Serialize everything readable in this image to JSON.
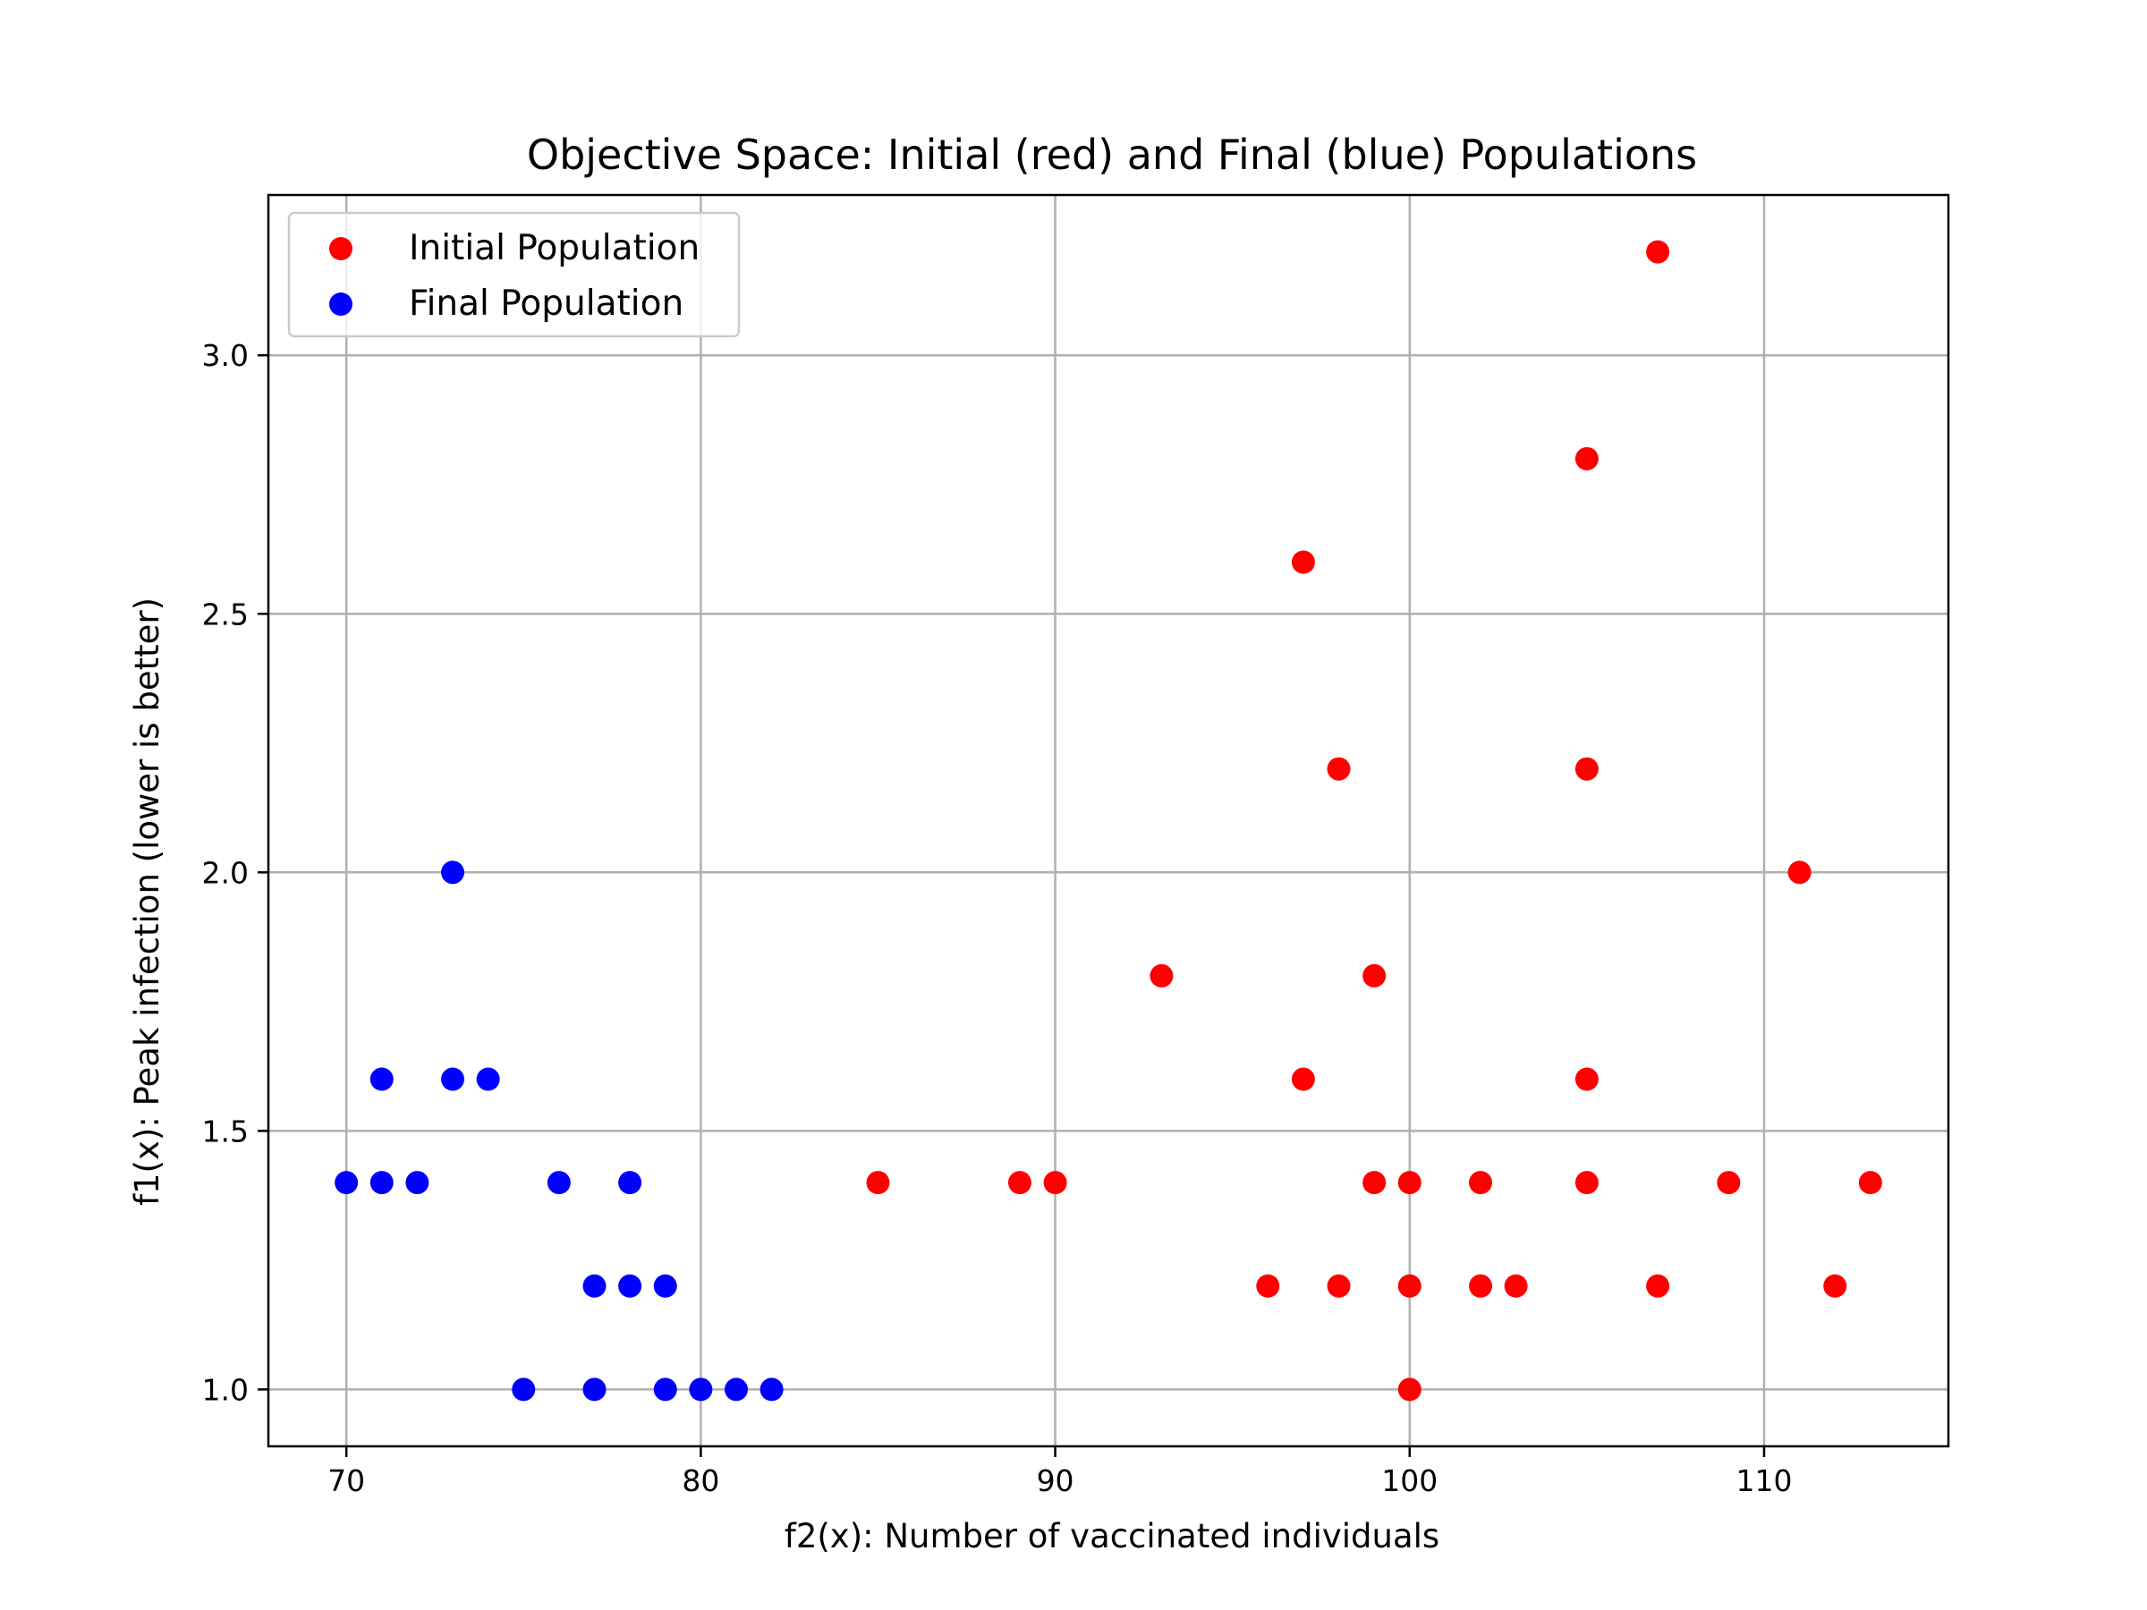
{
  "chart_data": {
    "type": "scatter",
    "title": "Objective Space: Initial (red) and Final (blue) Populations",
    "xlabel": "f2(x): Number of vaccinated individuals",
    "ylabel": "f1(x): Peak infection (lower is better)",
    "xlim": [
      67.8,
      115.2
    ],
    "ylim": [
      0.89,
      3.31
    ],
    "xticks": [
      70,
      80,
      90,
      100,
      110
    ],
    "xtick_labels": [
      "70",
      "80",
      "90",
      "100",
      "110"
    ],
    "yticks": [
      1.0,
      1.5,
      2.0,
      2.5,
      3.0
    ],
    "ytick_labels": [
      "1.0",
      "1.5",
      "2.0",
      "2.5",
      "3.0"
    ],
    "grid": true,
    "legend_position": "top-left",
    "series": [
      {
        "name": "Initial Population",
        "color": "#ff0000",
        "points": [
          [
            107,
            3.2
          ],
          [
            105,
            2.8
          ],
          [
            97,
            2.6
          ],
          [
            98,
            2.2
          ],
          [
            105,
            2.2
          ],
          [
            111,
            2.0
          ],
          [
            93,
            1.8
          ],
          [
            99,
            1.8
          ],
          [
            97,
            1.6
          ],
          [
            105,
            1.6
          ],
          [
            85,
            1.4
          ],
          [
            89,
            1.4
          ],
          [
            90,
            1.4
          ],
          [
            99,
            1.4
          ],
          [
            100,
            1.4
          ],
          [
            102,
            1.4
          ],
          [
            105,
            1.4
          ],
          [
            109,
            1.4
          ],
          [
            113,
            1.4
          ],
          [
            96,
            1.2
          ],
          [
            98,
            1.2
          ],
          [
            100,
            1.2
          ],
          [
            102,
            1.2
          ],
          [
            103,
            1.2
          ],
          [
            107,
            1.2
          ],
          [
            112,
            1.2
          ],
          [
            100,
            1.0
          ]
        ]
      },
      {
        "name": "Final Population",
        "color": "#0000ff",
        "points": [
          [
            73,
            2.0
          ],
          [
            71,
            1.6
          ],
          [
            73,
            1.6
          ],
          [
            74,
            1.6
          ],
          [
            70,
            1.4
          ],
          [
            71,
            1.4
          ],
          [
            72,
            1.4
          ],
          [
            76,
            1.4
          ],
          [
            78,
            1.4
          ],
          [
            77,
            1.2
          ],
          [
            78,
            1.2
          ],
          [
            79,
            1.2
          ],
          [
            75,
            1.0
          ],
          [
            77,
            1.0
          ],
          [
            79,
            1.0
          ],
          [
            80,
            1.0
          ],
          [
            81,
            1.0
          ],
          [
            82,
            1.0
          ]
        ]
      }
    ]
  }
}
